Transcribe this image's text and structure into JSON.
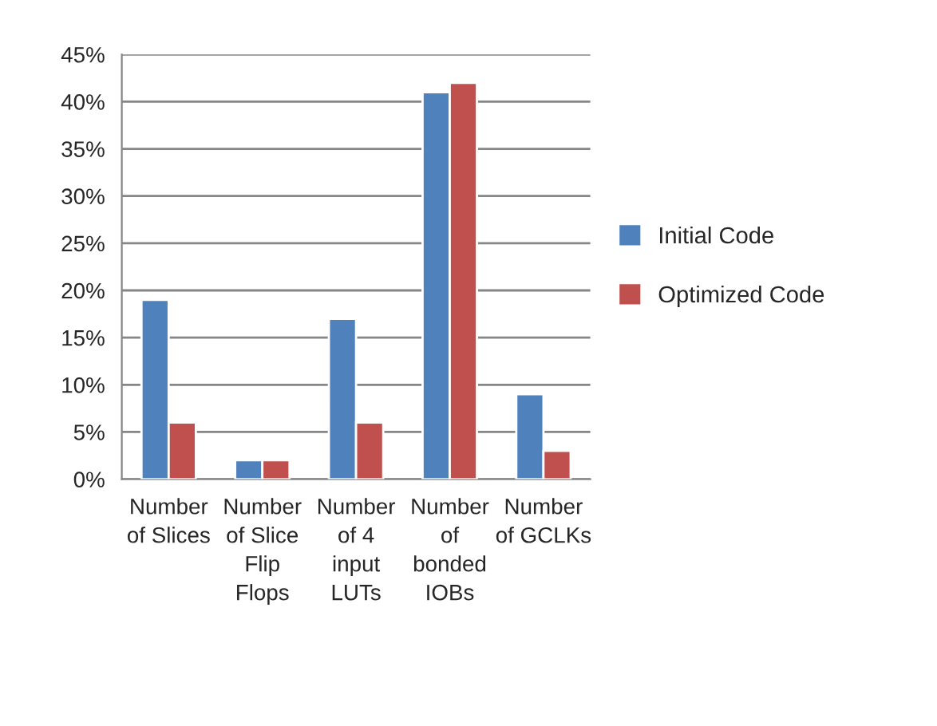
{
  "chart_data": {
    "type": "bar",
    "categories": [
      "Number\nof Slices",
      "Number\nof Slice\nFlip\nFlops",
      "Number\nof 4\ninput\nLUTs",
      "Number\nof\nbonded\nIOBs",
      "Number\nof GCLKs"
    ],
    "series": [
      {
        "name": "Initial Code",
        "color": "#4f81bd",
        "values": [
          19,
          2,
          17,
          41,
          9
        ]
      },
      {
        "name": "Optimized Code",
        "color": "#c0504d",
        "values": [
          6,
          2,
          6,
          42,
          3
        ]
      }
    ],
    "ylim": [
      0,
      45
    ],
    "yticks": [
      {
        "value": 0,
        "label": "0%"
      },
      {
        "value": 5,
        "label": "5%"
      },
      {
        "value": 10,
        "label": "10%"
      },
      {
        "value": 15,
        "label": "15%"
      },
      {
        "value": 20,
        "label": "20%"
      },
      {
        "value": 25,
        "label": "25%"
      },
      {
        "value": 30,
        "label": "30%"
      },
      {
        "value": 35,
        "label": "35%"
      },
      {
        "value": 40,
        "label": "40%"
      },
      {
        "value": 45,
        "label": "45%"
      }
    ],
    "grid": "y",
    "legend": "right"
  }
}
